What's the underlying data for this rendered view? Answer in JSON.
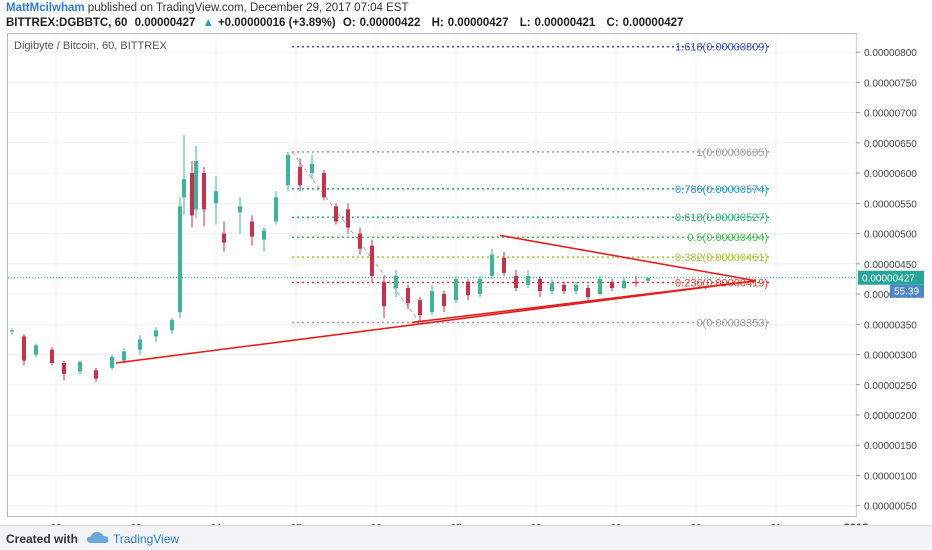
{
  "header": {
    "author": "MattMcilwham",
    "published_text": "published on TradingView.com, December 29, 2017 07:04 EST",
    "symbol": "BITTREX:DGBBTC, 60",
    "last": "0.00000427",
    "change": "+0.00000016 (+3.89%)",
    "open_label": "O:",
    "open": "0.00000422",
    "high_label": "H:",
    "high": "0.00000427",
    "low_label": "L:",
    "low": "0.00000421",
    "close_label": "C:",
    "close": "0.00000427"
  },
  "footer": {
    "created_with": "Created with",
    "brand": "TradingView",
    "logo_icon": "tradingview-cloud-icon"
  },
  "colors": {
    "up": "#26a69a",
    "down": "#ef5350",
    "up_candle": "#3db59a",
    "down_candle": "#c9304c",
    "trendline": "#e02020",
    "price_tag": "#26a69a",
    "countdown_tag": "#4a88c8"
  },
  "chart_data": {
    "type": "candlestick",
    "title": "Digibyte / Bitcoin, 60, BITTREX",
    "x_labels": [
      "22",
      "23",
      "24",
      "25",
      "26",
      "27",
      "28",
      "29",
      "30",
      "31",
      "2018"
    ],
    "y_ticks": [
      "0.00000800",
      "0.00000750",
      "0.00000700",
      "0.00000650",
      "0.00000600",
      "0.00000550",
      "0.00000500",
      "0.00000450",
      "0.00000400",
      "0.00000350",
      "0.00000300",
      "0.00000250",
      "0.00000200",
      "0.00000150",
      "0.00000100",
      "0.00000050"
    ],
    "ylim": [
      3.3e-07,
      8.3e-06
    ],
    "xlim": [
      21.4,
      32.0
    ],
    "grid": true,
    "price_line": 4.27e-06,
    "price_label": "0.00000427",
    "countdown_label": "55:39",
    "ohlc": [
      [
        21.45,
        3.38e-06,
        3.43e-06,
        3.33e-06,
        3.4e-06
      ],
      [
        21.6,
        3.3e-06,
        3.34e-06,
        2.82e-06,
        2.9e-06
      ],
      [
        21.75,
        3e-06,
        3.18e-06,
        2.96e-06,
        3.15e-06
      ],
      [
        21.95,
        3.08e-06,
        3.12e-06,
        2.82e-06,
        2.86e-06
      ],
      [
        22.1,
        2.86e-06,
        2.9e-06,
        2.57e-06,
        2.68e-06
      ],
      [
        22.3,
        2.72e-06,
        2.9e-06,
        2.68e-06,
        2.88e-06
      ],
      [
        22.5,
        2.74e-06,
        2.78e-06,
        2.55e-06,
        2.6e-06
      ],
      [
        22.7,
        2.78e-06,
        3e-06,
        2.75e-06,
        2.96e-06
      ],
      [
        22.85,
        2.9e-06,
        3.1e-06,
        2.86e-06,
        3.05e-06
      ],
      [
        23.05,
        3.08e-06,
        3.32e-06,
        3e-06,
        3.25e-06
      ],
      [
        23.25,
        3.3e-06,
        3.45e-06,
        3.2e-06,
        3.4e-06
      ],
      [
        23.45,
        3.4e-06,
        3.6e-06,
        3.34e-06,
        3.57e-06
      ],
      [
        23.55,
        3.7e-06,
        5.6e-06,
        3.6e-06,
        5.45e-06
      ],
      [
        23.6,
        5.6e-06,
        6.63e-06,
        5.3e-06,
        5.9e-06
      ],
      [
        23.7,
        6e-06,
        6.2e-06,
        5.1e-06,
        5.3e-06
      ],
      [
        23.75,
        5.4e-06,
        6.45e-06,
        5.25e-06,
        6.2e-06
      ],
      [
        23.85,
        6e-06,
        6.1e-06,
        5.12e-06,
        5.4e-06
      ],
      [
        24.0,
        5.5e-06,
        5.95e-06,
        5.15e-06,
        5.7e-06
      ],
      [
        24.1,
        5e-06,
        5.2e-06,
        4.7e-06,
        4.85e-06
      ],
      [
        24.3,
        5.35e-06,
        5.6e-06,
        5e-06,
        5.45e-06
      ],
      [
        24.45,
        5.2e-06,
        5.3e-06,
        4.8e-06,
        4.95e-06
      ],
      [
        24.6,
        4.9e-06,
        5.1e-06,
        4.7e-06,
        5.05e-06
      ],
      [
        24.75,
        5.2e-06,
        5.7e-06,
        5.15e-06,
        5.6e-06
      ],
      [
        24.9,
        5.8e-06,
        6.35e-06,
        5.7e-06,
        6.3e-06
      ],
      [
        25.05,
        6.1e-06,
        6.25e-06,
        5.7e-06,
        5.8e-06
      ],
      [
        25.2,
        6e-06,
        6.3e-06,
        5.9e-06,
        6.15e-06
      ],
      [
        25.35,
        6e-06,
        6.05e-06,
        5.55e-06,
        5.6e-06
      ],
      [
        25.5,
        5.45e-06,
        5.5e-06,
        5.15e-06,
        5.2e-06
      ],
      [
        25.65,
        5.4e-06,
        5.5e-06,
        5e-06,
        5.1e-06
      ],
      [
        25.8,
        5e-06,
        5.1e-06,
        4.65e-06,
        4.75e-06
      ],
      [
        25.95,
        4.8e-06,
        4.9e-06,
        4.2e-06,
        4.3e-06
      ],
      [
        26.1,
        4.2e-06,
        4.3e-06,
        3.6e-06,
        3.8e-06
      ],
      [
        26.25,
        4.1e-06,
        4.4e-06,
        3.95e-06,
        4.3e-06
      ],
      [
        26.4,
        4.1e-06,
        4.15e-06,
        3.75e-06,
        3.85e-06
      ],
      [
        26.55,
        3.9e-06,
        3.95e-06,
        3.53e-06,
        3.65e-06
      ],
      [
        26.7,
        3.7e-06,
        4.15e-06,
        3.65e-06,
        4.05e-06
      ],
      [
        26.85,
        4e-06,
        4.05e-06,
        3.7e-06,
        3.8e-06
      ],
      [
        27.0,
        3.9e-06,
        4.3e-06,
        3.85e-06,
        4.25e-06
      ],
      [
        27.15,
        4.2e-06,
        4.25e-06,
        3.9e-06,
        3.98e-06
      ],
      [
        27.3,
        4e-06,
        4.3e-06,
        3.95e-06,
        4.25e-06
      ],
      [
        27.45,
        4.3e-06,
        4.75e-06,
        4.25e-06,
        4.65e-06
      ],
      [
        27.6,
        4.6e-06,
        4.7e-06,
        4.3e-06,
        4.35e-06
      ],
      [
        27.75,
        4.3e-06,
        4.4e-06,
        4.05e-06,
        4.1e-06
      ],
      [
        27.9,
        4.15e-06,
        4.4e-06,
        4.1e-06,
        4.3e-06
      ],
      [
        28.05,
        4.25e-06,
        4.3e-06,
        3.95e-06,
        4.05e-06
      ],
      [
        28.2,
        4.05e-06,
        4.25e-06,
        4e-06,
        4.18e-06
      ],
      [
        28.35,
        4.15e-06,
        4.2e-06,
        4e-06,
        4.05e-06
      ],
      [
        28.5,
        4.05e-06,
        4.2e-06,
        4e-06,
        4.15e-06
      ],
      [
        28.65,
        4.1e-06,
        4.15e-06,
        3.88e-06,
        3.95e-06
      ],
      [
        28.8,
        4e-06,
        4.3e-06,
        3.98e-06,
        4.25e-06
      ],
      [
        28.95,
        4.2e-06,
        4.25e-06,
        4.05e-06,
        4.1e-06
      ],
      [
        29.1,
        4.1e-06,
        4.28e-06,
        4.08e-06,
        4.22e-06
      ],
      [
        29.25,
        4.2e-06,
        4.3e-06,
        4.12e-06,
        4.18e-06
      ],
      [
        29.4,
        4.22e-06,
        4.27e-06,
        4.21e-06,
        4.27e-06
      ]
    ],
    "fibonacci": [
      {
        "label": "1.618(0.00000809)",
        "value": 8.09e-06,
        "color": "#3f51b5"
      },
      {
        "label": "1(0.00000635)",
        "value": 6.35e-06,
        "color": "#9e9e9e"
      },
      {
        "label": "0.786(0.00000574)",
        "value": 5.74e-06,
        "color": "#2196c3"
      },
      {
        "label": "0.618(0.00000527)",
        "value": 5.27e-06,
        "color": "#2cb37a"
      },
      {
        "label": "0.5(0.00000494)",
        "value": 4.94e-06,
        "color": "#3fba50"
      },
      {
        "label": "0.382(0.00000461)",
        "value": 4.61e-06,
        "color": "#a8c53a"
      },
      {
        "label": "0.236(0.00000419)",
        "value": 4.19e-06,
        "color": "#e53935"
      },
      {
        "label": "0(0.00000353)",
        "value": 3.53e-06,
        "color": "#9e9e9e"
      }
    ],
    "fib_x_range": [
      24.95,
      30.95
    ],
    "trendlines": [
      {
        "x1": 22.75,
        "y1": 2.86e-06,
        "x2": 30.75,
        "y2": 4.22e-06
      },
      {
        "x1": 26.45,
        "y1": 3.53e-06,
        "x2": 30.75,
        "y2": 4.22e-06
      },
      {
        "x1": 27.55,
        "y1": 4.97e-06,
        "x2": 30.75,
        "y2": 4.22e-06
      }
    ],
    "fib_anchor": {
      "x1": 24.95,
      "y1": 6.35e-06,
      "x2": 26.55,
      "y2": 3.53e-06
    }
  }
}
